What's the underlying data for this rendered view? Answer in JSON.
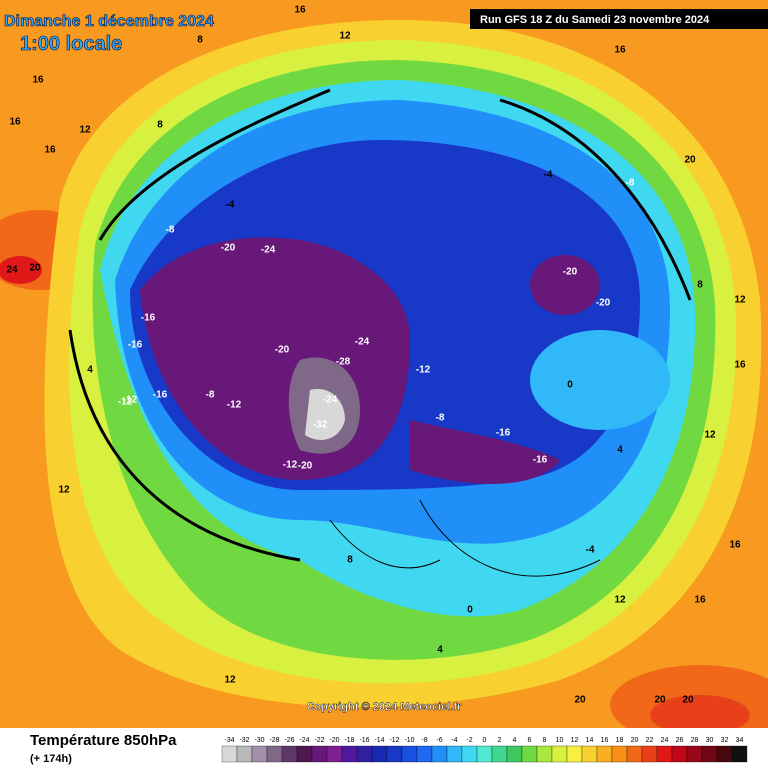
{
  "header": {
    "title": "Dimanche 1 décembre 2024",
    "time": "1:00 locale",
    "run": "Run GFS 18 Z du Samedi 23 novembre 2024"
  },
  "copyright": "Copyright © 2024 Meteociel.fr",
  "footer": {
    "title": "Température 850hPa",
    "lead": "(+ 174h)"
  },
  "colorbar": {
    "ticks": [
      -34,
      -32,
      -30,
      -28,
      -26,
      -24,
      -22,
      -20,
      -18,
      -16,
      -14,
      -12,
      -10,
      -8,
      -6,
      -4,
      -2,
      0,
      2,
      4,
      6,
      8,
      10,
      12,
      14,
      16,
      18,
      20,
      22,
      24,
      26,
      28,
      30,
      32,
      34
    ],
    "colors": [
      "#d8d8d8",
      "#b8b8b8",
      "#a090a8",
      "#806888",
      "#603868",
      "#501850",
      "#681878",
      "#802090",
      "#5018a0",
      "#3020a0",
      "#1828b0",
      "#1838c8",
      "#1850e0",
      "#2068f0",
      "#2090f8",
      "#30b8f8",
      "#40d8f0",
      "#50e8d0",
      "#40d890",
      "#40c860",
      "#70d840",
      "#a8e840",
      "#d8f040",
      "#f8f040",
      "#f8d030",
      "#f8b020",
      "#f89018",
      "#f06818",
      "#e84018",
      "#e01818",
      "#c00818",
      "#980818",
      "#700818",
      "#480810",
      "#101010"
    ]
  },
  "map_labels": [
    "16",
    "16",
    "16",
    "12",
    "8",
    "8",
    "12",
    "16",
    "16",
    "20",
    "24",
    "20",
    "12",
    "4",
    "-4",
    "-8",
    "-12",
    "-20",
    "-24",
    "-16",
    "-16",
    "-12",
    "-16",
    "-20",
    "-28",
    "-24",
    "-32",
    "-20",
    "-12",
    "-8",
    "-12",
    "-16",
    "-16",
    "-8",
    "-12",
    "-24",
    "-20",
    "-20",
    "-8",
    "-4",
    "0",
    "4",
    "8",
    "12",
    "16",
    "20",
    "12",
    "8",
    "4",
    "0",
    "-4",
    "12",
    "16",
    "20",
    "20",
    "12",
    "16"
  ]
}
